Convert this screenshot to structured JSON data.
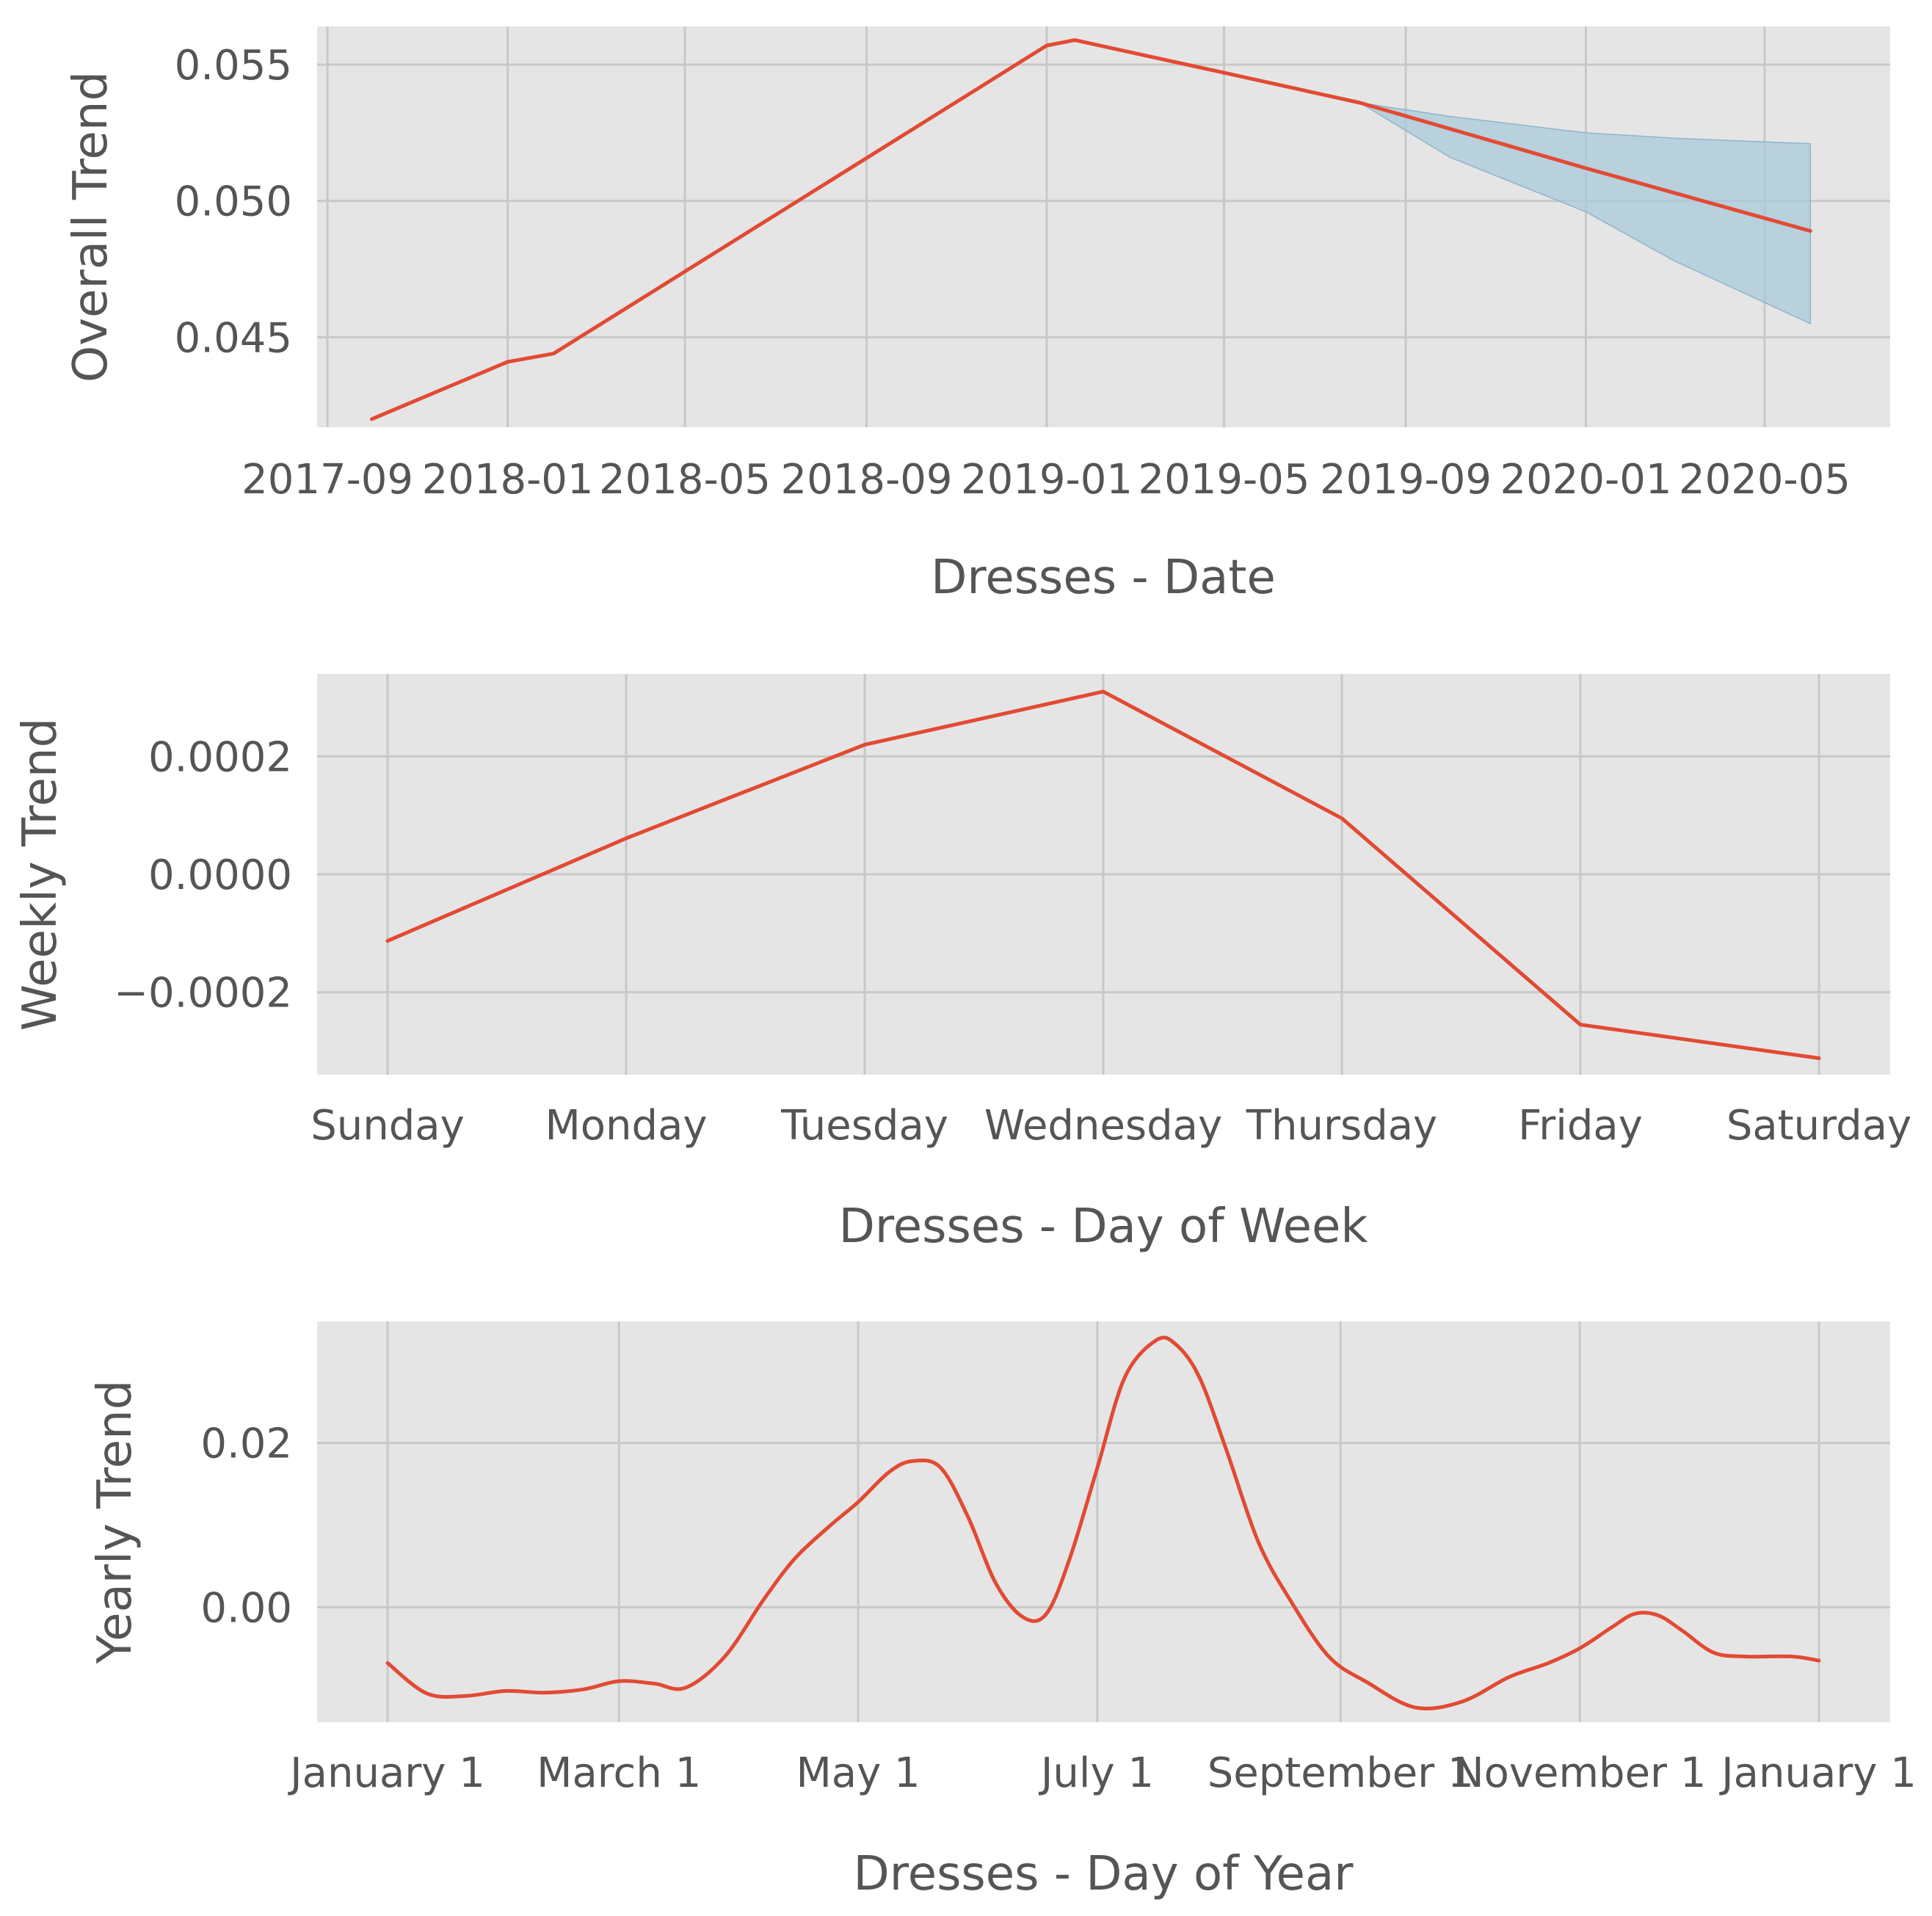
{
  "colors": {
    "line": "#e24a33",
    "band": "#a6c8da",
    "panel": "#e5e5e5",
    "grid": "#c8c8c8",
    "text": "#555555"
  },
  "chart_data": [
    {
      "type": "line",
      "xlabel": "Dresses - Date",
      "ylabel": "Overall Trend",
      "x_ticks": [
        "2017-09",
        "2018-01",
        "2018-05",
        "2018-09",
        "2019-01",
        "2019-05",
        "2019-09",
        "2020-01",
        "2020-05"
      ],
      "y_ticks": [
        "0.045",
        "0.050",
        "0.055"
      ],
      "x_range": [
        "2017-08-25",
        "2020-07-25"
      ],
      "ylim": [
        0.0417,
        0.0564
      ],
      "grid": true,
      "series": [
        {
          "x": [
            "2017-10-01",
            "2018-01-01",
            "2018-02-01",
            "2019-01-01",
            "2019-01-20",
            "2019-05-01",
            "2019-08-01",
            "2020-01-01",
            "2020-06-01"
          ],
          "y": [
            0.042,
            0.0441,
            0.0444,
            0.0557,
            0.0559,
            0.0547,
            0.0536,
            0.0512,
            0.0489
          ]
        }
      ],
      "uncertainty": {
        "x": [
          "2019-08-01",
          "2019-10-01",
          "2020-01-01",
          "2020-03-01",
          "2020-06-01"
        ],
        "upper": [
          0.0536,
          0.0531,
          0.0525,
          0.0523,
          0.0521
        ],
        "lower": [
          0.0536,
          0.0516,
          0.0496,
          0.0478,
          0.0455
        ]
      }
    },
    {
      "type": "line",
      "xlabel": "Dresses - Day of Week",
      "ylabel": "Weekly Trend",
      "categories": [
        "Sunday",
        "Monday",
        "Tuesday",
        "Wednesday",
        "Thursday",
        "Friday",
        "Saturday"
      ],
      "y_ticks": [
        "−0.0002",
        "0.0000",
        "0.0002"
      ],
      "ylim": [
        -0.00034,
        0.00034
      ],
      "grid": true,
      "series": [
        {
          "values": [
            -0.000113,
            6.1e-05,
            0.00022,
            0.00031,
            9.5e-05,
            -0.000255,
            -0.000312
          ]
        }
      ]
    },
    {
      "type": "line",
      "xlabel": "Dresses - Day of Year",
      "ylabel": "Yearly Trend",
      "x_ticks": [
        "January 1",
        "March 1",
        "May 1",
        "July 1",
        "September 1",
        "November 1",
        "January 1"
      ],
      "x_tick_days": [
        0,
        59,
        120,
        181,
        243,
        304,
        365
      ],
      "y_ticks": [
        "0.00",
        "0.02"
      ],
      "ylim": [
        -0.014,
        0.0348
      ],
      "grid": true,
      "series": [
        {
          "day": [
            0,
            10,
            20,
            30,
            40,
            50,
            59,
            68,
            76,
            86,
            96,
            104,
            113,
            120,
            128,
            134,
            141,
            148,
            155,
            162,
            168,
            174,
            181,
            188,
            196,
            201,
            207,
            214,
            222,
            230,
            240,
            250,
            262,
            274,
            286,
            296,
            304,
            312,
            318,
            324,
            330,
            338,
            346,
            358,
            365
          ],
          "value": [
            -0.0068,
            -0.0105,
            -0.0108,
            -0.0102,
            -0.0104,
            -0.01,
            -0.009,
            -0.0093,
            -0.0098,
            -0.006,
            0.001,
            0.006,
            0.01,
            0.0128,
            0.0165,
            0.0178,
            0.017,
            0.011,
            0.003,
            -0.0012,
            -0.0008,
            0.006,
            0.017,
            0.028,
            0.0325,
            0.032,
            0.028,
            0.019,
            0.008,
            0.001,
            -0.006,
            -0.0092,
            -0.0122,
            -0.0115,
            -0.0085,
            -0.0068,
            -0.005,
            -0.0025,
            -0.0008,
            -0.001,
            -0.0028,
            -0.0055,
            -0.006,
            -0.006,
            -0.0065
          ]
        }
      ]
    }
  ]
}
